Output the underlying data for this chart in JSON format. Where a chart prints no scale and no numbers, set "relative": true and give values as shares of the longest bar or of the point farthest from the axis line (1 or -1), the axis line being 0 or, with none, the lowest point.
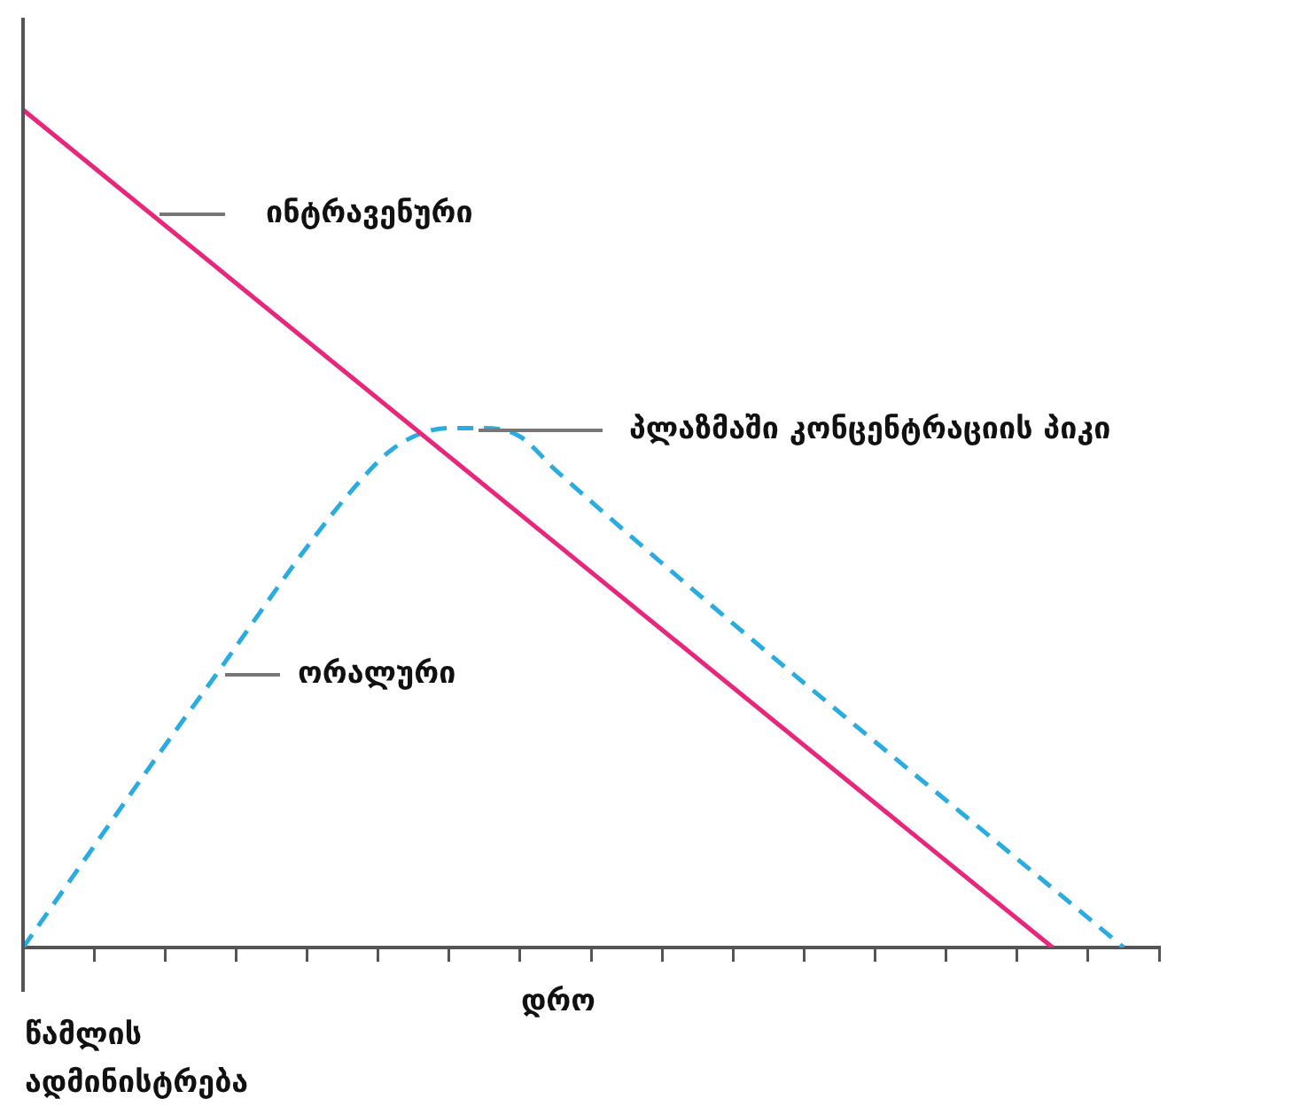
{
  "chart_data": {
    "type": "line",
    "relative": true,
    "xlabel": "დრო",
    "categories": [
      null,
      null,
      null,
      null,
      null,
      null,
      null,
      null,
      null,
      null,
      null,
      null,
      null,
      null,
      null,
      null,
      null,
      null,
      null,
      null,
      null,
      null,
      null,
      null,
      null,
      null,
      null,
      null,
      null,
      null,
      null,
      null,
      null
    ],
    "series": [
      {
        "color": "#e8267c",
        "line_style": "solid",
        "values": [
          1,
          null,
          null,
          null,
          null,
          null,
          null,
          null,
          null,
          null,
          null,
          null,
          null,
          null,
          null,
          null,
          null,
          null,
          null,
          null,
          null,
          null,
          null,
          null,
          null,
          null,
          null,
          null,
          null,
          0,
          null,
          null,
          null
        ]
      },
      {
        "color": "#2aace0",
        "line_style": "dashed",
        "values": [
          0,
          null,
          null,
          null,
          null,
          0.3,
          null,
          null,
          null,
          null,
          0.58,
          0.61,
          0.62,
          0.62,
          0.61,
          0.57,
          null,
          null,
          null,
          null,
          null,
          null,
          null,
          null,
          null,
          null,
          null,
          null,
          null,
          null,
          null,
          0,
          null
        ]
      }
    ],
    "annotations": [
      "ინტრავენური",
      "ორალური",
      "პლაზმაში კონცენტრაციის პიკი",
      "წამლის ადმინისტრება"
    ],
    "legend": false,
    "grid": false,
    "marker": "none"
  }
}
